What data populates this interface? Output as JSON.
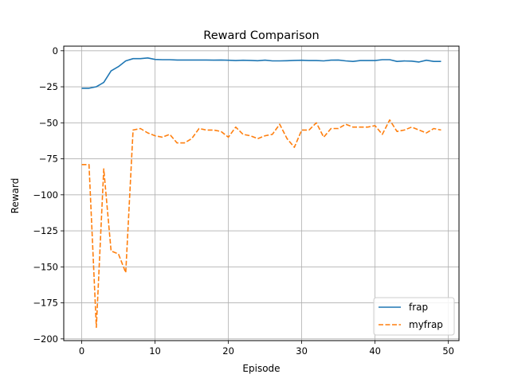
{
  "chart_data": {
    "type": "line",
    "title": "Reward Comparison",
    "xlabel": "Episode",
    "ylabel": "Reward",
    "xlim": [
      -2.45,
      51.45
    ],
    "ylim": [
      -201.2,
      3.2
    ],
    "xticks": [
      0,
      10,
      20,
      30,
      40,
      50
    ],
    "yticks": [
      0,
      -25,
      -50,
      -75,
      -100,
      -125,
      -150,
      -175,
      -200
    ],
    "xtick_labels": [
      "0",
      "10",
      "20",
      "30",
      "40",
      "50"
    ],
    "ytick_labels": [
      "0",
      "−25",
      "−50",
      "−75",
      "−100",
      "−125",
      "−150",
      "−175",
      "−200"
    ],
    "grid": true,
    "legend_position": "bottom-right",
    "series": [
      {
        "name": "frap",
        "color": "#1f77b4",
        "style": "solid",
        "x": [
          0,
          1,
          2,
          3,
          4,
          5,
          6,
          7,
          8,
          9,
          10,
          11,
          12,
          13,
          14,
          15,
          16,
          17,
          18,
          19,
          20,
          21,
          22,
          23,
          24,
          25,
          26,
          27,
          28,
          29,
          30,
          31,
          32,
          33,
          34,
          35,
          36,
          37,
          38,
          39,
          40,
          41,
          42,
          43,
          44,
          45,
          46,
          47,
          48,
          49
        ],
        "values": [
          -26,
          -26,
          -25,
          -22,
          -14,
          -11,
          -7,
          -5.5,
          -5.5,
          -5,
          -6,
          -6.2,
          -6.2,
          -6.4,
          -6.4,
          -6.4,
          -6.4,
          -6.4,
          -6.5,
          -6.4,
          -6.6,
          -6.8,
          -6.6,
          -6.7,
          -6.9,
          -6.5,
          -7,
          -7,
          -6.9,
          -6.7,
          -6.6,
          -6.8,
          -6.8,
          -7,
          -6.5,
          -6.4,
          -7,
          -7.4,
          -6.8,
          -6.8,
          -6.8,
          -6.2,
          -6.2,
          -7.4,
          -7.1,
          -7.2,
          -7.8,
          -6.6,
          -7.4,
          -7.4
        ]
      },
      {
        "name": "myfrap",
        "color": "#ff7f0e",
        "style": "dashed",
        "x": [
          0,
          1,
          2,
          3,
          4,
          5,
          6,
          7,
          8,
          9,
          10,
          11,
          12,
          13,
          14,
          15,
          16,
          17,
          18,
          19,
          20,
          21,
          22,
          23,
          24,
          25,
          26,
          27,
          28,
          29,
          30,
          31,
          32,
          33,
          34,
          35,
          36,
          37,
          38,
          39,
          40,
          41,
          42,
          43,
          44,
          45,
          46,
          47,
          48,
          49
        ],
        "values": [
          -79,
          -79,
          -192,
          -82,
          -139,
          -141,
          -154,
          -55,
          -54,
          -57,
          -59,
          -60,
          -58,
          -64,
          -64,
          -61,
          -54,
          -55,
          -55,
          -56,
          -60,
          -53,
          -58,
          -59,
          -61,
          -59,
          -58,
          -51,
          -61,
          -67,
          -55,
          -55,
          -50,
          -60,
          -54,
          -54,
          -51,
          -53,
          -53,
          -53,
          -52,
          -58,
          -48,
          -56,
          -55,
          -53,
          -55,
          -57,
          -54,
          -55
        ]
      }
    ]
  }
}
